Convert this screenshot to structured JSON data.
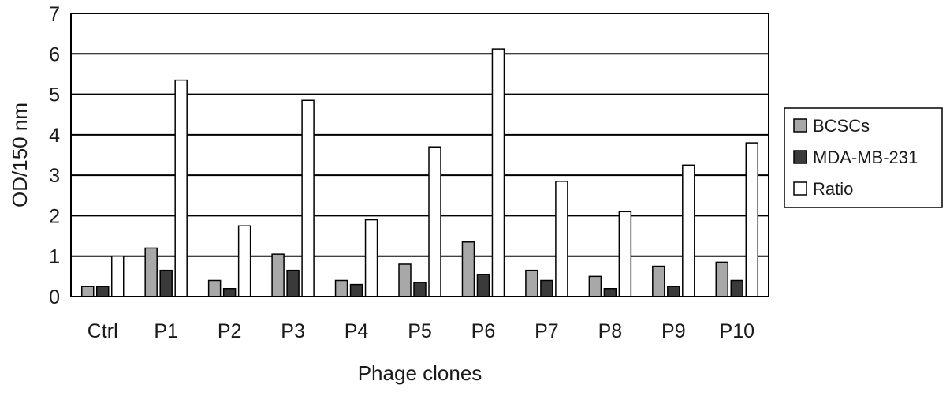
{
  "chart_data": {
    "type": "bar",
    "title": "",
    "xlabel": "Phage clones",
    "ylabel": "OD/150 nm",
    "ylim": [
      0,
      7
    ],
    "yticks": [
      "0",
      "1",
      "2",
      "3",
      "4",
      "5",
      "6",
      "7"
    ],
    "grid": true,
    "legend_position": "right",
    "categories": [
      "Ctrl",
      "P1",
      "P2",
      "P3",
      "P4",
      "P5",
      "P6",
      "P7",
      "P8",
      "P9",
      "P10"
    ],
    "series": [
      {
        "name": "BCSCs",
        "color": "#a8a8a8",
        "values": [
          0.25,
          1.2,
          0.4,
          1.05,
          0.4,
          0.8,
          1.35,
          0.65,
          0.5,
          0.75,
          0.85
        ]
      },
      {
        "name": "MDA-MB-231",
        "color": "#3a3a3a",
        "values": [
          0.25,
          0.65,
          0.2,
          0.65,
          0.3,
          0.35,
          0.55,
          0.4,
          0.2,
          0.25,
          0.4
        ]
      },
      {
        "name": "Ratio",
        "color": "#ffffff",
        "values": [
          1.0,
          5.35,
          1.75,
          4.85,
          1.9,
          3.7,
          6.12,
          2.85,
          2.1,
          3.25,
          3.8
        ]
      }
    ]
  }
}
